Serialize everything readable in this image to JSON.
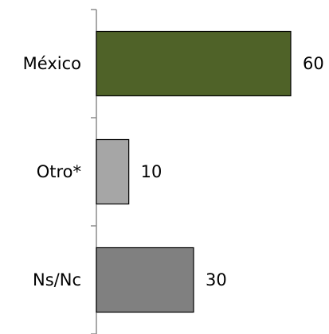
{
  "chart_data": {
    "type": "bar",
    "orientation": "horizontal",
    "title": "",
    "xlabel": "",
    "ylabel": "",
    "categories": [
      "México",
      "Otro*",
      "Ns/Nc"
    ],
    "values": [
      60,
      10,
      30
    ],
    "value_labels": [
      "60",
      "10",
      "30"
    ],
    "xlim": [
      0,
      60
    ],
    "colors": [
      "#4f6228",
      "#a6a6a6",
      "#808080"
    ],
    "grid": false,
    "legend": "none"
  }
}
